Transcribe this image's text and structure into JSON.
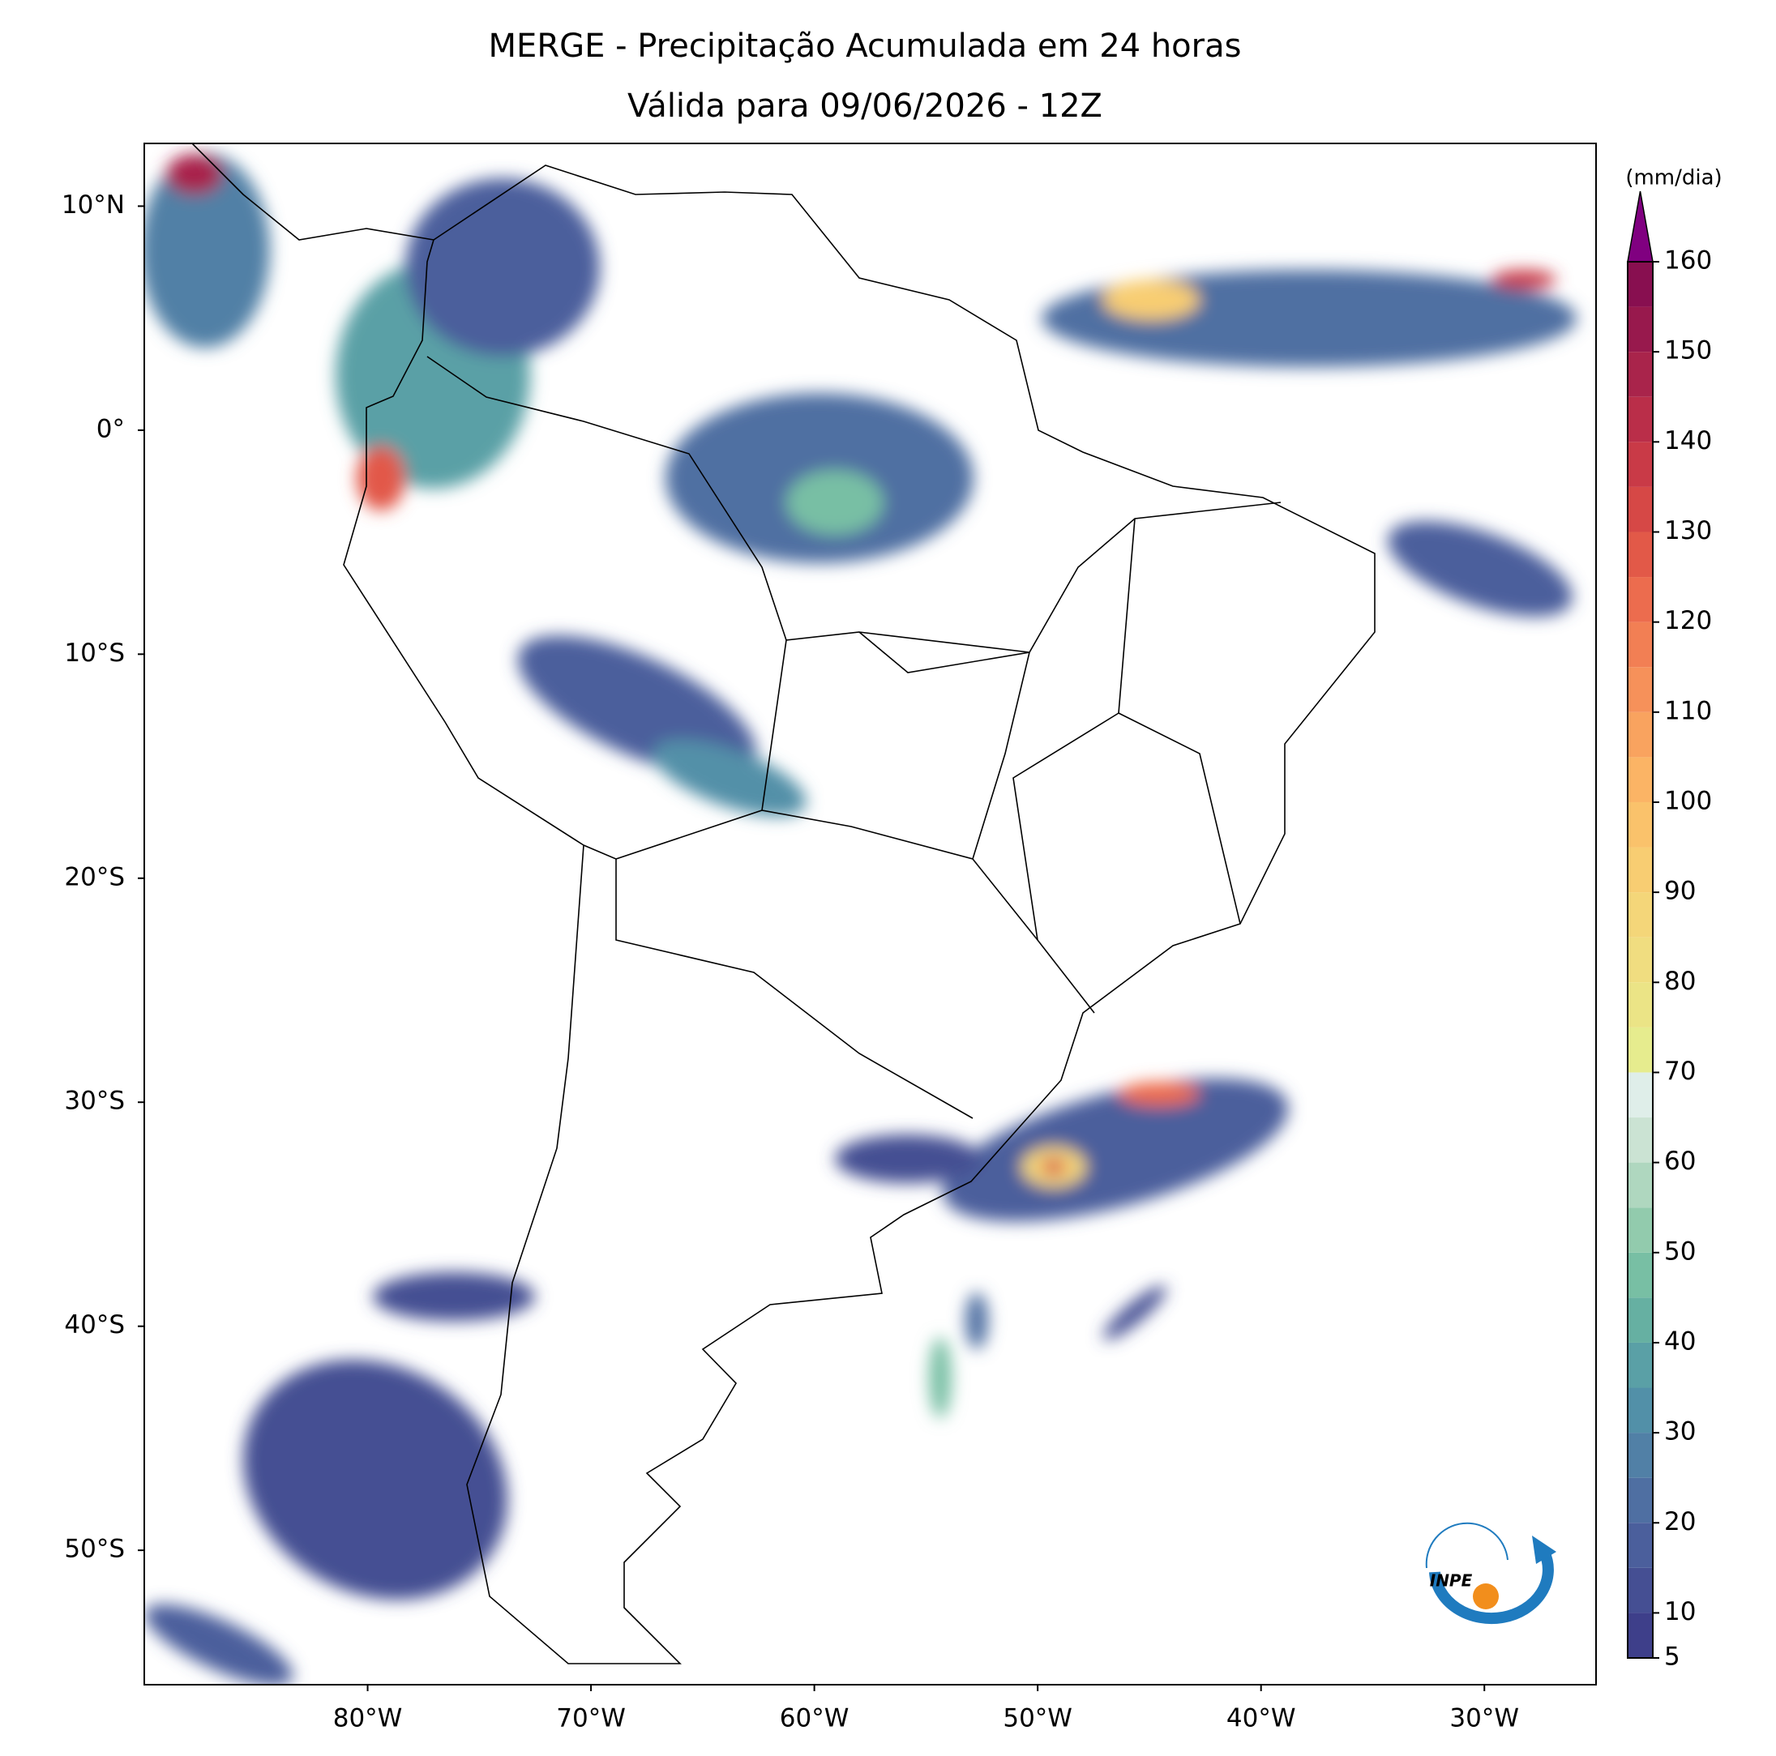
{
  "chart_data": {
    "type": "map",
    "title": "MERGE - Precipitação Acumulada em 24 horas",
    "subtitle": "Válida para 09/06/2026 - 12Z",
    "xlim": [
      -90,
      -25
    ],
    "ylim": [
      -56,
      12.8
    ],
    "xticks": [
      {
        "value": -80,
        "label": "80°W"
      },
      {
        "value": -70,
        "label": "70°W"
      },
      {
        "value": -60,
        "label": "60°W"
      },
      {
        "value": -50,
        "label": "50°W"
      },
      {
        "value": -40,
        "label": "40°W"
      },
      {
        "value": -30,
        "label": "30°W"
      }
    ],
    "yticks": [
      {
        "value": 10,
        "label": "10°N"
      },
      {
        "value": 0,
        "label": "0°"
      },
      {
        "value": -10,
        "label": "10°S"
      },
      {
        "value": -20,
        "label": "20°S"
      },
      {
        "value": -30,
        "label": "30°S"
      },
      {
        "value": -40,
        "label": "40°S"
      },
      {
        "value": -50,
        "label": "50°S"
      }
    ],
    "colorbar": {
      "label": "(mm/dia)",
      "levels": [
        5,
        10,
        15,
        20,
        25,
        30,
        35,
        40,
        45,
        50,
        55,
        60,
        65,
        70,
        75,
        80,
        85,
        90,
        95,
        100,
        105,
        110,
        115,
        120,
        125,
        130,
        135,
        140,
        145,
        150,
        155,
        160
      ],
      "colors": [
        "#3e3f8a",
        "#454f93",
        "#4b5f9c",
        "#4f6fa2",
        "#5180a6",
        "#5290a8",
        "#5aa0a6",
        "#66b0a2",
        "#78bfa4",
        "#92cbad",
        "#afd7bf",
        "#cbe3d3",
        "#dfeee9",
        "#e6ec8e",
        "#ebe486",
        "#f0dd80",
        "#f4d679",
        "#f8cd72",
        "#fac26b",
        "#fbb465",
        "#f9a35f",
        "#f6915a",
        "#f27f54",
        "#ec6c4e",
        "#e25948",
        "#d64846",
        "#c93a47",
        "#ba2e49",
        "#a9244b",
        "#98194d",
        "#880f50"
      ],
      "extend_color": "#800080",
      "ticks": [
        5,
        10,
        20,
        30,
        40,
        50,
        60,
        70,
        80,
        90,
        100,
        110,
        120,
        130,
        140,
        150,
        160
      ]
    },
    "logo": "INPE"
  }
}
